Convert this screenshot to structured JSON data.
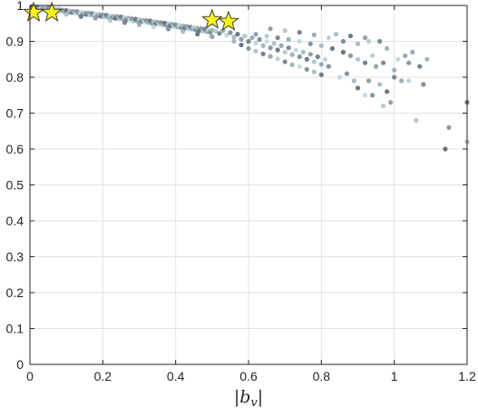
{
  "chart_data": {
    "type": "scatter",
    "title": "",
    "xlabel_main": "b",
    "xlabel_sub": "v",
    "ylabel": "",
    "xlim": [
      0,
      1.2
    ],
    "ylim": [
      0,
      1
    ],
    "xticks": [
      "0",
      "0.2",
      "0.4",
      "0.6",
      "0.8",
      "1",
      "1.2"
    ],
    "yticks": [
      "0",
      "0.1",
      "0.2",
      "0.3",
      "0.4",
      "0.5",
      "0.6",
      "0.7",
      "0.8",
      "0.9",
      "1"
    ],
    "grid": true,
    "colors": {
      "point_dark": "#5b6877",
      "point_mid": "#8ea1ac",
      "point_light": "#c4dede",
      "star_fill": "#f7f21c",
      "star_stroke": "#3f3f3f",
      "grid": "#e3e3e3",
      "axis": "#262626"
    },
    "series": [
      {
        "marker": "circle",
        "points": [
          [
            0.005,
            0.997
          ],
          [
            0.01,
            0.995
          ],
          [
            0.015,
            0.993
          ],
          [
            0.02,
            0.996
          ],
          [
            0.025,
            0.991
          ],
          [
            0.03,
            0.994
          ],
          [
            0.035,
            0.99
          ],
          [
            0.04,
            0.992
          ],
          [
            0.045,
            0.989
          ],
          [
            0.05,
            0.993
          ],
          [
            0.055,
            0.988
          ],
          [
            0.06,
            0.991
          ],
          [
            0.065,
            0.986
          ],
          [
            0.07,
            0.99
          ],
          [
            0.075,
            0.985
          ],
          [
            0.08,
            0.989
          ],
          [
            0.085,
            0.984
          ],
          [
            0.09,
            0.987
          ],
          [
            0.095,
            0.982
          ],
          [
            0.1,
            0.986
          ],
          [
            0.105,
            0.981
          ],
          [
            0.11,
            0.985
          ],
          [
            0.115,
            0.98
          ],
          [
            0.12,
            0.984
          ],
          [
            0.125,
            0.979
          ],
          [
            0.13,
            0.983
          ],
          [
            0.135,
            0.977
          ],
          [
            0.14,
            0.981
          ],
          [
            0.145,
            0.976
          ],
          [
            0.15,
            0.98
          ],
          [
            0.155,
            0.975
          ],
          [
            0.16,
            0.979
          ],
          [
            0.165,
            0.973
          ],
          [
            0.17,
            0.978
          ],
          [
            0.175,
            0.972
          ],
          [
            0.18,
            0.976
          ],
          [
            0.185,
            0.971
          ],
          [
            0.19,
            0.975
          ],
          [
            0.195,
            0.97
          ],
          [
            0.2,
            0.974
          ],
          [
            0.205,
            0.968
          ],
          [
            0.21,
            0.973
          ],
          [
            0.215,
            0.967
          ],
          [
            0.22,
            0.971
          ],
          [
            0.225,
            0.966
          ],
          [
            0.23,
            0.97
          ],
          [
            0.235,
            0.964
          ],
          [
            0.24,
            0.969
          ],
          [
            0.245,
            0.963
          ],
          [
            0.25,
            0.968
          ],
          [
            0.255,
            0.962
          ],
          [
            0.26,
            0.966
          ],
          [
            0.265,
            0.96
          ],
          [
            0.27,
            0.965
          ],
          [
            0.275,
            0.959
          ],
          [
            0.28,
            0.963
          ],
          [
            0.285,
            0.957
          ],
          [
            0.29,
            0.962
          ],
          [
            0.295,
            0.956
          ],
          [
            0.3,
            0.961
          ],
          [
            0.305,
            0.955
          ],
          [
            0.31,
            0.959
          ],
          [
            0.315,
            0.953
          ],
          [
            0.32,
            0.958
          ],
          [
            0.325,
            0.952
          ],
          [
            0.33,
            0.957
          ],
          [
            0.335,
            0.95
          ],
          [
            0.34,
            0.955
          ],
          [
            0.345,
            0.949
          ],
          [
            0.35,
            0.954
          ],
          [
            0.355,
            0.947
          ],
          [
            0.36,
            0.952
          ],
          [
            0.365,
            0.946
          ],
          [
            0.37,
            0.951
          ],
          [
            0.375,
            0.944
          ],
          [
            0.38,
            0.949
          ],
          [
            0.385,
            0.943
          ],
          [
            0.39,
            0.948
          ],
          [
            0.395,
            0.941
          ],
          [
            0.4,
            0.946
          ],
          [
            0.405,
            0.94
          ],
          [
            0.41,
            0.945
          ],
          [
            0.415,
            0.938
          ],
          [
            0.42,
            0.943
          ],
          [
            0.425,
            0.937
          ],
          [
            0.43,
            0.942
          ],
          [
            0.435,
            0.935
          ],
          [
            0.44,
            0.94
          ],
          [
            0.445,
            0.934
          ],
          [
            0.45,
            0.939
          ],
          [
            0.455,
            0.932
          ],
          [
            0.46,
            0.937
          ],
          [
            0.465,
            0.93
          ],
          [
            0.47,
            0.936
          ],
          [
            0.475,
            0.929
          ],
          [
            0.48,
            0.934
          ],
          [
            0.485,
            0.927
          ],
          [
            0.49,
            0.932
          ],
          [
            0.495,
            0.925
          ],
          [
            0.5,
            0.931
          ],
          [
            0.02,
            0.985
          ],
          [
            0.06,
            0.98
          ],
          [
            0.1,
            0.975
          ],
          [
            0.14,
            0.969
          ],
          [
            0.18,
            0.964
          ],
          [
            0.22,
            0.958
          ],
          [
            0.26,
            0.952
          ],
          [
            0.3,
            0.946
          ],
          [
            0.34,
            0.94
          ],
          [
            0.38,
            0.934
          ],
          [
            0.42,
            0.927
          ],
          [
            0.46,
            0.92
          ],
          [
            0.5,
            0.913
          ],
          [
            0.51,
            0.928
          ],
          [
            0.52,
            0.922
          ],
          [
            0.53,
            0.93
          ],
          [
            0.54,
            0.917
          ],
          [
            0.55,
            0.924
          ],
          [
            0.56,
            0.912
          ],
          [
            0.57,
            0.92
          ],
          [
            0.58,
            0.906
          ],
          [
            0.59,
            0.915
          ],
          [
            0.6,
            0.9
          ],
          [
            0.61,
            0.91
          ],
          [
            0.62,
            0.895
          ],
          [
            0.63,
            0.905
          ],
          [
            0.64,
            0.888
          ],
          [
            0.65,
            0.9
          ],
          [
            0.66,
            0.882
          ],
          [
            0.67,
            0.894
          ],
          [
            0.68,
            0.876
          ],
          [
            0.69,
            0.888
          ],
          [
            0.7,
            0.87
          ],
          [
            0.71,
            0.882
          ],
          [
            0.72,
            0.863
          ],
          [
            0.73,
            0.876
          ],
          [
            0.74,
            0.857
          ],
          [
            0.75,
            0.87
          ],
          [
            0.76,
            0.85
          ],
          [
            0.77,
            0.864
          ],
          [
            0.78,
            0.843
          ],
          [
            0.79,
            0.857
          ],
          [
            0.8,
            0.836
          ],
          [
            0.81,
            0.85
          ],
          [
            0.82,
            0.83
          ],
          [
            0.56,
            0.9
          ],
          [
            0.58,
            0.89
          ],
          [
            0.6,
            0.88
          ],
          [
            0.62,
            0.873
          ],
          [
            0.64,
            0.865
          ],
          [
            0.66,
            0.858
          ],
          [
            0.68,
            0.851
          ],
          [
            0.7,
            0.843
          ],
          [
            0.72,
            0.835
          ],
          [
            0.74,
            0.83
          ],
          [
            0.76,
            0.822
          ],
          [
            0.78,
            0.815
          ],
          [
            0.8,
            0.807
          ],
          [
            0.62,
            0.92
          ],
          [
            0.65,
            0.915
          ],
          [
            0.68,
            0.91
          ],
          [
            0.71,
            0.905
          ],
          [
            0.74,
            0.9
          ],
          [
            0.77,
            0.893
          ],
          [
            0.8,
            0.888
          ],
          [
            0.83,
            0.88
          ],
          [
            0.66,
            0.935
          ],
          [
            0.7,
            0.93
          ],
          [
            0.74,
            0.925
          ],
          [
            0.78,
            0.918
          ],
          [
            0.82,
            0.91
          ],
          [
            0.86,
            0.9
          ],
          [
            0.9,
            0.893
          ],
          [
            0.86,
            0.87
          ],
          [
            0.88,
            0.86
          ],
          [
            0.9,
            0.85
          ],
          [
            0.92,
            0.84
          ],
          [
            0.95,
            0.83
          ],
          [
            0.94,
            0.86
          ],
          [
            0.97,
            0.84
          ],
          [
            1.0,
            0.82
          ],
          [
            0.92,
            0.75
          ],
          [
            0.94,
            0.75
          ],
          [
            0.96,
            0.78
          ],
          [
            0.98,
            0.76
          ],
          [
            0.99,
            0.73
          ],
          [
            0.97,
            0.72
          ],
          [
            1.0,
            0.8
          ],
          [
            1.02,
            0.79
          ],
          [
            0.85,
            0.8
          ],
          [
            0.87,
            0.81
          ],
          [
            0.89,
            0.79
          ],
          [
            0.9,
            0.77
          ],
          [
            0.93,
            0.79
          ],
          [
            1.06,
            0.68
          ],
          [
            1.07,
            0.83
          ],
          [
            1.05,
            0.87
          ],
          [
            1.04,
            0.79
          ],
          [
            1.08,
            0.78
          ],
          [
            1.09,
            0.85
          ],
          [
            1.14,
            0.6
          ],
          [
            1.15,
            0.66
          ],
          [
            1.2,
            0.62
          ],
          [
            1.2,
            0.73
          ],
          [
            1.03,
            0.86
          ],
          [
            0.93,
            0.9
          ],
          [
            0.96,
            0.9
          ],
          [
            0.98,
            0.88
          ],
          [
            1.01,
            0.85
          ],
          [
            1.04,
            0.84
          ],
          [
            0.84,
            0.92
          ],
          [
            0.88,
            0.915
          ],
          [
            0.92,
            0.91
          ]
        ]
      },
      {
        "marker": "star",
        "points": [
          [
            0.01,
            0.98
          ],
          [
            0.06,
            0.98
          ],
          [
            0.5,
            0.96
          ],
          [
            0.545,
            0.955
          ]
        ]
      }
    ]
  }
}
